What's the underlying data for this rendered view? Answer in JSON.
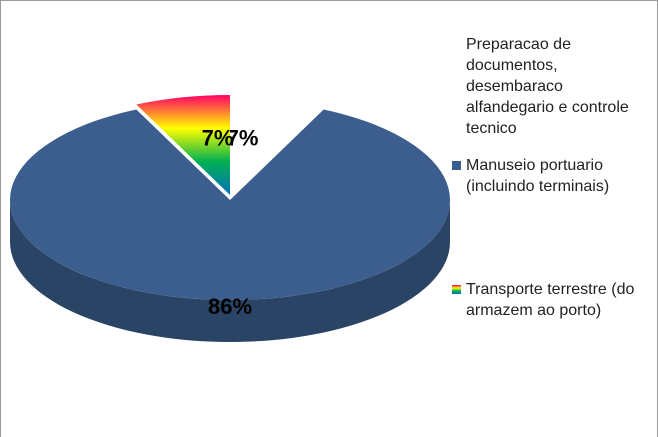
{
  "chart_data": {
    "type": "pie",
    "categories": [
      "Preparacao de documentos, desembaraco alfandegario e controle tecnico",
      "Manuseio portuario (incluindo terminais)",
      "Transporte terrestre (do armazem ao porto)"
    ],
    "values": [
      7,
      86,
      7
    ],
    "value_labels": [
      "7%",
      "86%",
      "7%"
    ],
    "colors": [
      "#ffffff",
      "#3b5e8e",
      [
        "#ff0066",
        "#ffff00",
        "#00b050",
        "#0070c0"
      ]
    ],
    "legend": "right"
  }
}
